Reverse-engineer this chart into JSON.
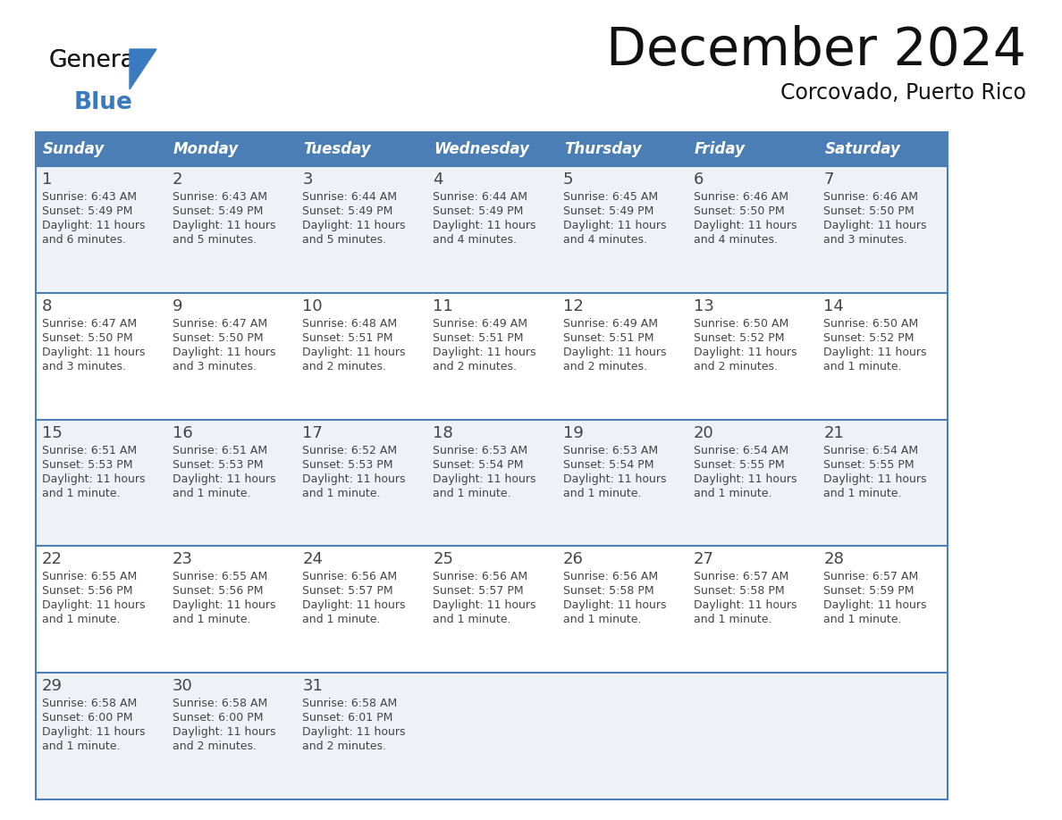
{
  "title": "December 2024",
  "subtitle": "Corcovado, Puerto Rico",
  "header_bg": "#4a7eb5",
  "header_text_color": "#ffffff",
  "days_of_week": [
    "Sunday",
    "Monday",
    "Tuesday",
    "Wednesday",
    "Thursday",
    "Friday",
    "Saturday"
  ],
  "row_bg_odd": "#eef2f7",
  "row_bg_even": "#ffffff",
  "grid_line_color": "#4a7eb5",
  "text_color": "#444444",
  "day_num_color": "#444444",
  "calendar_data": [
    [
      {
        "day": "1",
        "sunrise": "6:43 AM",
        "sunset": "5:49 PM",
        "daylight": "11 hours and 6 minutes."
      },
      {
        "day": "2",
        "sunrise": "6:43 AM",
        "sunset": "5:49 PM",
        "daylight": "11 hours and 5 minutes."
      },
      {
        "day": "3",
        "sunrise": "6:44 AM",
        "sunset": "5:49 PM",
        "daylight": "11 hours and 5 minutes."
      },
      {
        "day": "4",
        "sunrise": "6:44 AM",
        "sunset": "5:49 PM",
        "daylight": "11 hours and 4 minutes."
      },
      {
        "day": "5",
        "sunrise": "6:45 AM",
        "sunset": "5:49 PM",
        "daylight": "11 hours and 4 minutes."
      },
      {
        "day": "6",
        "sunrise": "6:46 AM",
        "sunset": "5:50 PM",
        "daylight": "11 hours and 4 minutes."
      },
      {
        "day": "7",
        "sunrise": "6:46 AM",
        "sunset": "5:50 PM",
        "daylight": "11 hours and 3 minutes."
      }
    ],
    [
      {
        "day": "8",
        "sunrise": "6:47 AM",
        "sunset": "5:50 PM",
        "daylight": "11 hours and 3 minutes."
      },
      {
        "day": "9",
        "sunrise": "6:47 AM",
        "sunset": "5:50 PM",
        "daylight": "11 hours and 3 minutes."
      },
      {
        "day": "10",
        "sunrise": "6:48 AM",
        "sunset": "5:51 PM",
        "daylight": "11 hours and 2 minutes."
      },
      {
        "day": "11",
        "sunrise": "6:49 AM",
        "sunset": "5:51 PM",
        "daylight": "11 hours and 2 minutes."
      },
      {
        "day": "12",
        "sunrise": "6:49 AM",
        "sunset": "5:51 PM",
        "daylight": "11 hours and 2 minutes."
      },
      {
        "day": "13",
        "sunrise": "6:50 AM",
        "sunset": "5:52 PM",
        "daylight": "11 hours and 2 minutes."
      },
      {
        "day": "14",
        "sunrise": "6:50 AM",
        "sunset": "5:52 PM",
        "daylight": "11 hours and 1 minute."
      }
    ],
    [
      {
        "day": "15",
        "sunrise": "6:51 AM",
        "sunset": "5:53 PM",
        "daylight": "11 hours and 1 minute."
      },
      {
        "day": "16",
        "sunrise": "6:51 AM",
        "sunset": "5:53 PM",
        "daylight": "11 hours and 1 minute."
      },
      {
        "day": "17",
        "sunrise": "6:52 AM",
        "sunset": "5:53 PM",
        "daylight": "11 hours and 1 minute."
      },
      {
        "day": "18",
        "sunrise": "6:53 AM",
        "sunset": "5:54 PM",
        "daylight": "11 hours and 1 minute."
      },
      {
        "day": "19",
        "sunrise": "6:53 AM",
        "sunset": "5:54 PM",
        "daylight": "11 hours and 1 minute."
      },
      {
        "day": "20",
        "sunrise": "6:54 AM",
        "sunset": "5:55 PM",
        "daylight": "11 hours and 1 minute."
      },
      {
        "day": "21",
        "sunrise": "6:54 AM",
        "sunset": "5:55 PM",
        "daylight": "11 hours and 1 minute."
      }
    ],
    [
      {
        "day": "22",
        "sunrise": "6:55 AM",
        "sunset": "5:56 PM",
        "daylight": "11 hours and 1 minute."
      },
      {
        "day": "23",
        "sunrise": "6:55 AM",
        "sunset": "5:56 PM",
        "daylight": "11 hours and 1 minute."
      },
      {
        "day": "24",
        "sunrise": "6:56 AM",
        "sunset": "5:57 PM",
        "daylight": "11 hours and 1 minute."
      },
      {
        "day": "25",
        "sunrise": "6:56 AM",
        "sunset": "5:57 PM",
        "daylight": "11 hours and 1 minute."
      },
      {
        "day": "26",
        "sunrise": "6:56 AM",
        "sunset": "5:58 PM",
        "daylight": "11 hours and 1 minute."
      },
      {
        "day": "27",
        "sunrise": "6:57 AM",
        "sunset": "5:58 PM",
        "daylight": "11 hours and 1 minute."
      },
      {
        "day": "28",
        "sunrise": "6:57 AM",
        "sunset": "5:59 PM",
        "daylight": "11 hours and 1 minute."
      }
    ],
    [
      {
        "day": "29",
        "sunrise": "6:58 AM",
        "sunset": "6:00 PM",
        "daylight": "11 hours and 1 minute."
      },
      {
        "day": "30",
        "sunrise": "6:58 AM",
        "sunset": "6:00 PM",
        "daylight": "11 hours and 2 minutes."
      },
      {
        "day": "31",
        "sunrise": "6:58 AM",
        "sunset": "6:01 PM",
        "daylight": "11 hours and 2 minutes."
      },
      null,
      null,
      null,
      null
    ]
  ],
  "logo_color_general": "#1a1a1a",
  "logo_color_blue": "#3a7abf",
  "logo_triangle_color": "#3a7abf",
  "figsize": [
    11.88,
    9.18
  ],
  "dpi": 100
}
